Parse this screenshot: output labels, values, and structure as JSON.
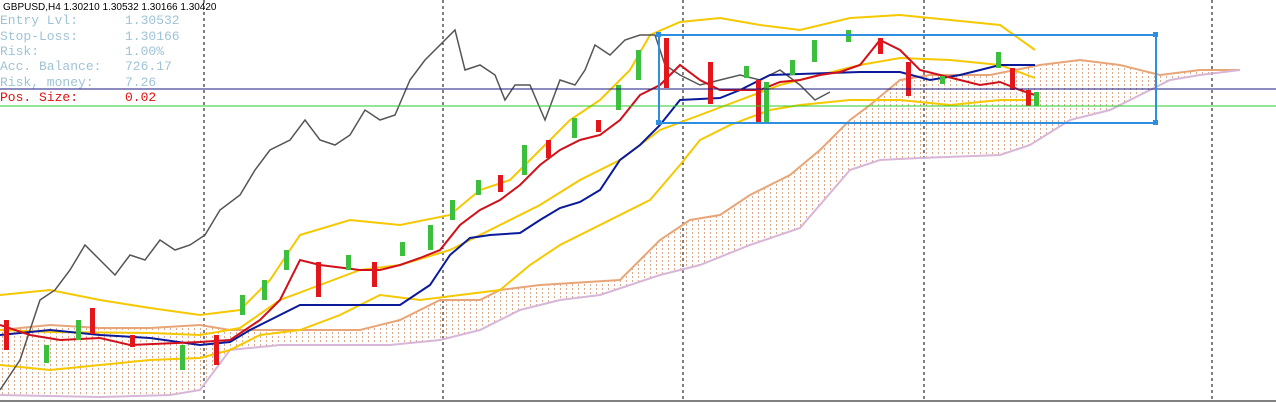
{
  "header": {
    "symbol_line": "GBPUSD,H4  1.30210 1.30532 1.30166 1.30420"
  },
  "panel": {
    "rows": [
      {
        "label": "Entry Lvl:",
        "value": "1.30532"
      },
      {
        "label": "Stop-Loss:",
        "value": "1.30166"
      },
      {
        "label": "Risk:",
        "value": "1.00%"
      },
      {
        "label": "Acc. Balance:",
        "value": "726.17"
      },
      {
        "label": "Risk, money:",
        "value": "7.26"
      },
      {
        "label": "Pos. Size:",
        "value": "0.02"
      }
    ]
  }
}
